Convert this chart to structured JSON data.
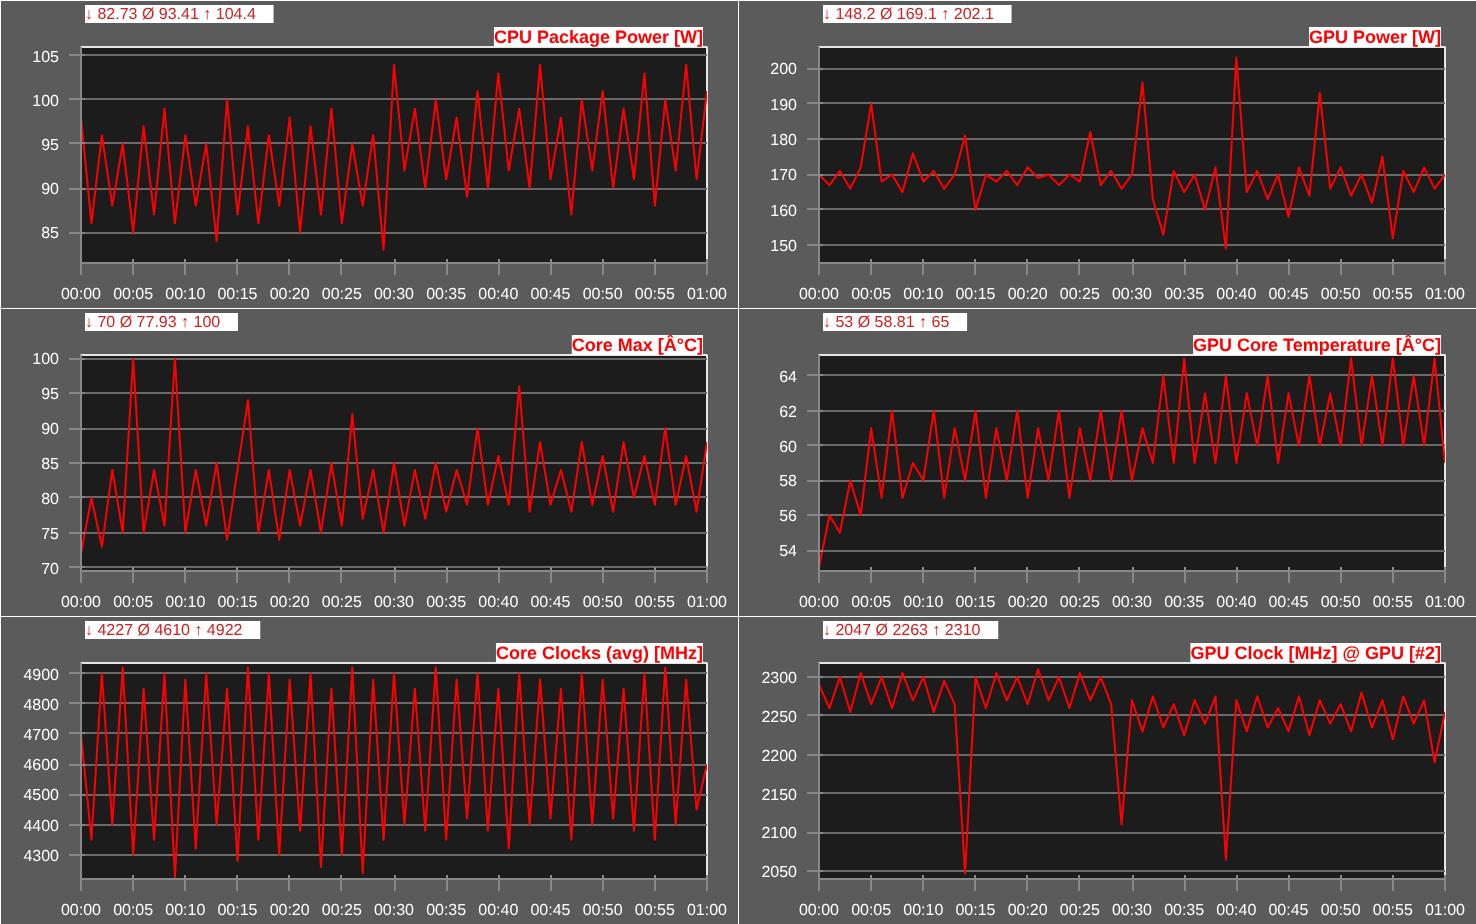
{
  "chart_data": [
    {
      "type": "line",
      "subtitle": "↓ 82.73   Ø 93.41   ↑ 104.4",
      "grid": "y",
      "x": [
        0,
        1,
        2,
        3,
        4,
        5,
        6,
        7,
        8,
        9,
        10,
        11,
        12,
        13,
        14,
        15,
        16,
        17,
        18,
        19,
        20,
        21,
        22,
        23,
        24,
        25,
        26,
        27,
        28,
        29,
        30,
        31,
        32,
        33,
        34,
        35,
        36,
        37,
        38,
        39,
        40,
        41,
        42,
        43,
        44,
        45,
        46,
        47,
        48,
        49,
        50,
        51,
        52,
        53,
        54,
        55,
        56,
        57,
        58,
        59,
        60
      ],
      "xlim": [
        0,
        60
      ],
      "xticks": [
        {
          "value": 0,
          "label": "00:00"
        },
        {
          "value": 5,
          "label": "00:05"
        },
        {
          "value": 10,
          "label": "00:10"
        },
        {
          "value": 15,
          "label": "00:15"
        },
        {
          "value": 20,
          "label": "00:20"
        },
        {
          "value": 25,
          "label": "00:25"
        },
        {
          "value": 30,
          "label": "00:30"
        },
        {
          "value": 35,
          "label": "00:35"
        },
        {
          "value": 40,
          "label": "00:40"
        },
        {
          "value": 45,
          "label": "00:45"
        },
        {
          "value": 50,
          "label": "00:50"
        },
        {
          "value": 55,
          "label": "00:55"
        },
        {
          "value": 60,
          "label": "01:00"
        }
      ],
      "ylim": [
        81.5,
        106
      ],
      "yticks": [
        85,
        90,
        95,
        100,
        105
      ],
      "series": [
        {
          "name": "CPU Package Power [W]",
          "color": "#ff0000",
          "values": [
            98,
            86,
            96,
            88,
            95,
            85,
            97,
            87,
            99,
            86,
            96,
            88,
            95,
            84,
            100,
            87,
            97,
            86,
            96,
            88,
            98,
            85,
            97,
            87,
            99,
            86,
            95,
            88,
            96,
            83,
            104,
            92,
            99,
            90,
            100,
            91,
            98,
            89,
            101,
            90,
            103,
            92,
            99,
            90,
            104,
            91,
            98,
            87,
            100,
            92,
            101,
            90,
            99,
            91,
            103,
            88,
            100,
            92,
            104,
            91,
            101
          ]
        }
      ]
    },
    {
      "type": "line",
      "subtitle": "↓ 148.2   Ø 169.1   ↑ 202.1",
      "grid": "y",
      "x": [
        0,
        1,
        2,
        3,
        4,
        5,
        6,
        7,
        8,
        9,
        10,
        11,
        12,
        13,
        14,
        15,
        16,
        17,
        18,
        19,
        20,
        21,
        22,
        23,
        24,
        25,
        26,
        27,
        28,
        29,
        30,
        31,
        32,
        33,
        34,
        35,
        36,
        37,
        38,
        39,
        40,
        41,
        42,
        43,
        44,
        45,
        46,
        47,
        48,
        49,
        50,
        51,
        52,
        53,
        54,
        55,
        56,
        57,
        58,
        59,
        60
      ],
      "xlim": [
        0,
        60
      ],
      "xticks": [
        {
          "value": 0,
          "label": "00:00"
        },
        {
          "value": 5,
          "label": "00:05"
        },
        {
          "value": 10,
          "label": "00:10"
        },
        {
          "value": 15,
          "label": "00:15"
        },
        {
          "value": 20,
          "label": "00:20"
        },
        {
          "value": 25,
          "label": "00:25"
        },
        {
          "value": 30,
          "label": "00:30"
        },
        {
          "value": 35,
          "label": "00:35"
        },
        {
          "value": 40,
          "label": "00:40"
        },
        {
          "value": 45,
          "label": "00:45"
        },
        {
          "value": 50,
          "label": "00:50"
        },
        {
          "value": 55,
          "label": "00:55"
        },
        {
          "value": 60,
          "label": "01:00"
        }
      ],
      "ylim": [
        145,
        206
      ],
      "yticks": [
        150,
        160,
        170,
        180,
        190,
        200
      ],
      "series": [
        {
          "name": "GPU Power [W]",
          "color": "#ff0000",
          "values": [
            170,
            167,
            171,
            166,
            172,
            190,
            168,
            170,
            165,
            176,
            168,
            171,
            166,
            170,
            181,
            160,
            170,
            168,
            171,
            167,
            172,
            169,
            170,
            167,
            170,
            168,
            182,
            167,
            171,
            166,
            170,
            196,
            163,
            153,
            171,
            165,
            170,
            160,
            172,
            149,
            203,
            165,
            171,
            163,
            170,
            158,
            172,
            164,
            193,
            166,
            172,
            164,
            170,
            162,
            175,
            152,
            171,
            165,
            172,
            166,
            170
          ]
        }
      ]
    },
    {
      "type": "line",
      "subtitle": "↓ 70   Ø 77.93   ↑ 100",
      "grid": "y",
      "x": [
        0,
        1,
        2,
        3,
        4,
        5,
        6,
        7,
        8,
        9,
        10,
        11,
        12,
        13,
        14,
        15,
        16,
        17,
        18,
        19,
        20,
        21,
        22,
        23,
        24,
        25,
        26,
        27,
        28,
        29,
        30,
        31,
        32,
        33,
        34,
        35,
        36,
        37,
        38,
        39,
        40,
        41,
        42,
        43,
        44,
        45,
        46,
        47,
        48,
        49,
        50,
        51,
        52,
        53,
        54,
        55,
        56,
        57,
        58,
        59,
        60
      ],
      "xlim": [
        0,
        60
      ],
      "xticks": [
        {
          "value": 0,
          "label": "00:00"
        },
        {
          "value": 5,
          "label": "00:05"
        },
        {
          "value": 10,
          "label": "00:10"
        },
        {
          "value": 15,
          "label": "00:15"
        },
        {
          "value": 20,
          "label": "00:20"
        },
        {
          "value": 25,
          "label": "00:25"
        },
        {
          "value": 30,
          "label": "00:30"
        },
        {
          "value": 35,
          "label": "00:35"
        },
        {
          "value": 40,
          "label": "00:40"
        },
        {
          "value": 45,
          "label": "00:45"
        },
        {
          "value": 50,
          "label": "00:50"
        },
        {
          "value": 55,
          "label": "00:55"
        },
        {
          "value": 60,
          "label": "01:00"
        }
      ],
      "ylim": [
        69.5,
        100.5
      ],
      "yticks": [
        70,
        75,
        80,
        85,
        90,
        95,
        100
      ],
      "series": [
        {
          "name": "Core Max [Â°C]",
          "color": "#ff0000",
          "values": [
            72,
            80,
            73,
            84,
            75,
            100,
            75,
            84,
            76,
            100,
            75,
            84,
            76,
            85,
            74,
            84,
            94,
            75,
            84,
            74,
            84,
            76,
            84,
            75,
            85,
            76,
            92,
            77,
            84,
            75,
            85,
            76,
            84,
            77,
            85,
            78,
            84,
            79,
            90,
            79,
            86,
            79,
            96,
            78,
            88,
            79,
            84,
            78,
            88,
            79,
            86,
            78,
            88,
            80,
            86,
            79,
            90,
            79,
            86,
            78,
            88
          ]
        }
      ]
    },
    {
      "type": "line",
      "subtitle": "↓ 53   Ø 58.81   ↑ 65",
      "grid": "y",
      "x": [
        0,
        1,
        2,
        3,
        4,
        5,
        6,
        7,
        8,
        9,
        10,
        11,
        12,
        13,
        14,
        15,
        16,
        17,
        18,
        19,
        20,
        21,
        22,
        23,
        24,
        25,
        26,
        27,
        28,
        29,
        30,
        31,
        32,
        33,
        34,
        35,
        36,
        37,
        38,
        39,
        40,
        41,
        42,
        43,
        44,
        45,
        46,
        47,
        48,
        49,
        50,
        51,
        52,
        53,
        54,
        55,
        56,
        57,
        58,
        59,
        60
      ],
      "xlim": [
        0,
        60
      ],
      "xticks": [
        {
          "value": 0,
          "label": "00:00"
        },
        {
          "value": 5,
          "label": "00:05"
        },
        {
          "value": 10,
          "label": "00:10"
        },
        {
          "value": 15,
          "label": "00:15"
        },
        {
          "value": 20,
          "label": "00:20"
        },
        {
          "value": 25,
          "label": "00:25"
        },
        {
          "value": 30,
          "label": "00:30"
        },
        {
          "value": 35,
          "label": "00:35"
        },
        {
          "value": 40,
          "label": "00:40"
        },
        {
          "value": 45,
          "label": "00:45"
        },
        {
          "value": 50,
          "label": "00:50"
        },
        {
          "value": 55,
          "label": "00:55"
        },
        {
          "value": 60,
          "label": "01:00"
        }
      ],
      "ylim": [
        52.8,
        65.2
      ],
      "yticks": [
        54,
        56,
        58,
        60,
        62,
        64
      ],
      "series": [
        {
          "name": "GPU Core Temperature [Â°C]",
          "color": "#ff0000",
          "values": [
            53,
            56,
            55,
            58,
            56,
            61,
            57,
            62,
            57,
            59,
            58,
            62,
            57,
            61,
            58,
            62,
            57,
            61,
            58,
            62,
            57,
            61,
            58,
            62,
            57,
            61,
            58,
            62,
            58,
            62,
            58,
            61,
            59,
            64,
            59,
            65,
            59,
            63,
            59,
            64,
            59,
            63,
            60,
            64,
            59,
            63,
            60,
            64,
            60,
            63,
            60,
            65,
            60,
            64,
            60,
            65,
            60,
            64,
            60,
            65,
            59
          ]
        }
      ]
    },
    {
      "type": "line",
      "subtitle": "↓ 4227   Ø 4610   ↑ 4922",
      "grid": "y",
      "x": [
        0,
        1,
        2,
        3,
        4,
        5,
        6,
        7,
        8,
        9,
        10,
        11,
        12,
        13,
        14,
        15,
        16,
        17,
        18,
        19,
        20,
        21,
        22,
        23,
        24,
        25,
        26,
        27,
        28,
        29,
        30,
        31,
        32,
        33,
        34,
        35,
        36,
        37,
        38,
        39,
        40,
        41,
        42,
        43,
        44,
        45,
        46,
        47,
        48,
        49,
        50,
        51,
        52,
        53,
        54,
        55,
        56,
        57,
        58,
        59,
        60
      ],
      "xlim": [
        0,
        60
      ],
      "xticks": [
        {
          "value": 0,
          "label": "00:00"
        },
        {
          "value": 5,
          "label": "00:05"
        },
        {
          "value": 10,
          "label": "00:10"
        },
        {
          "value": 15,
          "label": "00:15"
        },
        {
          "value": 20,
          "label": "00:20"
        },
        {
          "value": 25,
          "label": "00:25"
        },
        {
          "value": 30,
          "label": "00:30"
        },
        {
          "value": 35,
          "label": "00:35"
        },
        {
          "value": 40,
          "label": "00:40"
        },
        {
          "value": 45,
          "label": "00:45"
        },
        {
          "value": 50,
          "label": "00:50"
        },
        {
          "value": 55,
          "label": "00:55"
        },
        {
          "value": 60,
          "label": "01:00"
        }
      ],
      "ylim": [
        4220,
        4935
      ],
      "yticks": [
        4300,
        4400,
        4500,
        4600,
        4700,
        4800,
        4900
      ],
      "series": [
        {
          "name": "Core Clocks (avg) [MHz]",
          "color": "#ff0000",
          "values": [
            4700,
            4350,
            4900,
            4400,
            4920,
            4300,
            4850,
            4350,
            4900,
            4227,
            4880,
            4320,
            4900,
            4400,
            4850,
            4280,
            4920,
            4350,
            4900,
            4300,
            4880,
            4380,
            4900,
            4260,
            4850,
            4300,
            4920,
            4240,
            4880,
            4350,
            4900,
            4400,
            4850,
            4380,
            4920,
            4350,
            4880,
            4420,
            4900,
            4380,
            4850,
            4320,
            4900,
            4400,
            4880,
            4420,
            4850,
            4350,
            4900,
            4400,
            4880,
            4420,
            4850,
            4380,
            4900,
            4350,
            4920,
            4400,
            4880,
            4450,
            4600
          ]
        }
      ]
    },
    {
      "type": "line",
      "subtitle": "↓ 2047   Ø 2263   ↑ 2310",
      "grid": "y",
      "x": [
        0,
        1,
        2,
        3,
        4,
        5,
        6,
        7,
        8,
        9,
        10,
        11,
        12,
        13,
        14,
        15,
        16,
        17,
        18,
        19,
        20,
        21,
        22,
        23,
        24,
        25,
        26,
        27,
        28,
        29,
        30,
        31,
        32,
        33,
        34,
        35,
        36,
        37,
        38,
        39,
        40,
        41,
        42,
        43,
        44,
        45,
        46,
        47,
        48,
        49,
        50,
        51,
        52,
        53,
        54,
        55,
        56,
        57,
        58,
        59,
        60
      ],
      "xlim": [
        0,
        60
      ],
      "xticks": [
        {
          "value": 0,
          "label": "00:00"
        },
        {
          "value": 5,
          "label": "00:05"
        },
        {
          "value": 10,
          "label": "00:10"
        },
        {
          "value": 15,
          "label": "00:15"
        },
        {
          "value": 20,
          "label": "00:20"
        },
        {
          "value": 25,
          "label": "00:25"
        },
        {
          "value": 30,
          "label": "00:30"
        },
        {
          "value": 35,
          "label": "00:35"
        },
        {
          "value": 40,
          "label": "00:40"
        },
        {
          "value": 45,
          "label": "00:45"
        },
        {
          "value": 50,
          "label": "00:50"
        },
        {
          "value": 55,
          "label": "00:55"
        },
        {
          "value": 60,
          "label": "01:00"
        }
      ],
      "ylim": [
        2040,
        2318
      ],
      "yticks": [
        2050,
        2100,
        2150,
        2200,
        2250,
        2300
      ],
      "series": [
        {
          "name": "GPU Clock [MHz] @ GPU [#2]",
          "color": "#ff0000",
          "values": [
            2290,
            2260,
            2300,
            2255,
            2305,
            2265,
            2300,
            2260,
            2305,
            2270,
            2300,
            2255,
            2295,
            2265,
            2047,
            2300,
            2260,
            2305,
            2270,
            2300,
            2265,
            2310,
            2270,
            2300,
            2260,
            2305,
            2270,
            2300,
            2265,
            2110,
            2270,
            2230,
            2275,
            2235,
            2265,
            2225,
            2270,
            2240,
            2275,
            2065,
            2270,
            2230,
            2275,
            2235,
            2260,
            2230,
            2275,
            2225,
            2270,
            2240,
            2265,
            2230,
            2280,
            2235,
            2270,
            2220,
            2275,
            2240,
            2270,
            2190,
            2255
          ]
        }
      ]
    }
  ]
}
